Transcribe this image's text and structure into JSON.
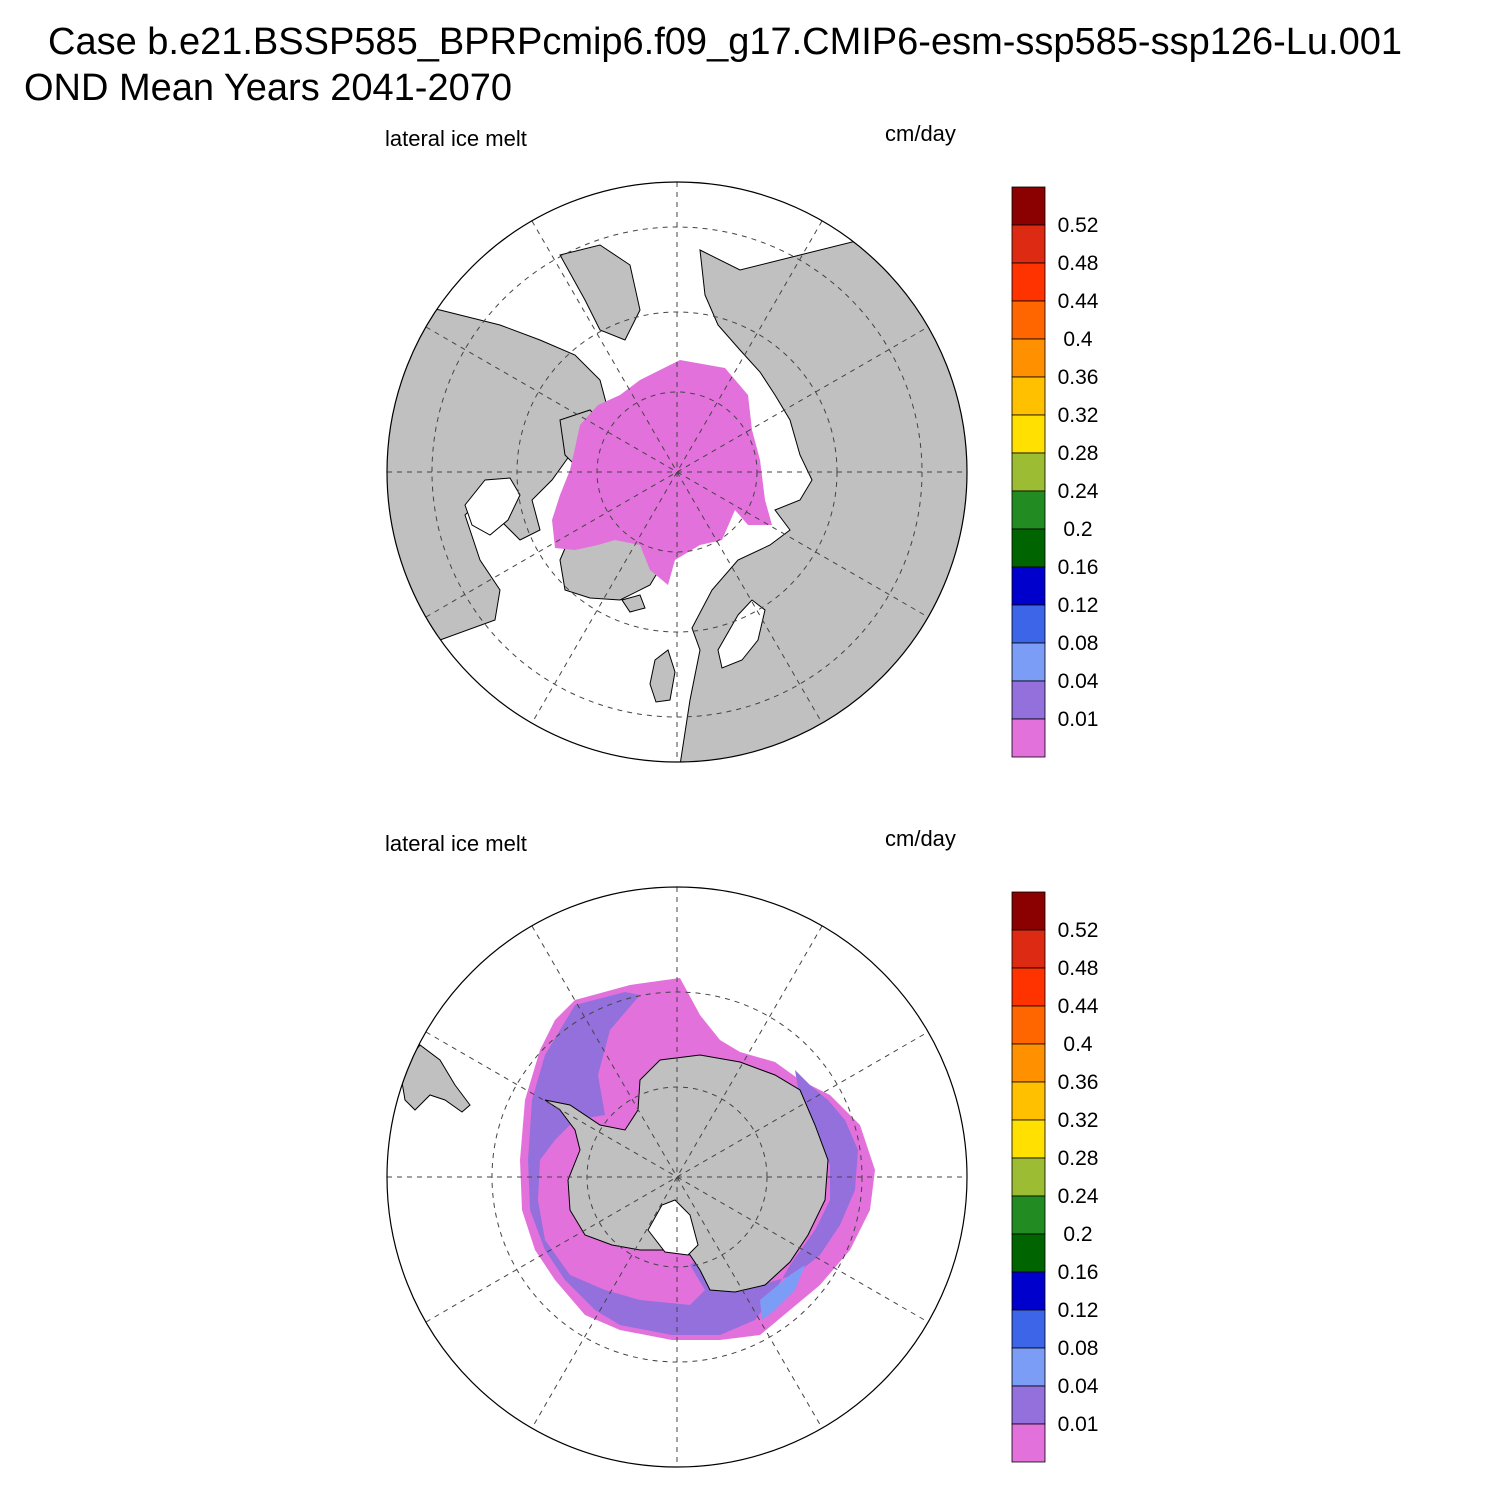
{
  "header": {
    "title_line1": "Case b.e21.BSSP585_BPRPcmip6.f09_g17.CMIP6-esm-ssp585-ssp126-Lu.001",
    "title_line2": "OND Mean   Years 2041-2070"
  },
  "panels": [
    {
      "id": "north",
      "left_label": "lateral ice melt",
      "right_label": "cm/day",
      "hemisphere": "Northern Hemisphere polar stereographic"
    },
    {
      "id": "south",
      "left_label": "lateral ice melt",
      "right_label": "cm/day",
      "hemisphere": "Southern Hemisphere polar stereographic"
    }
  ],
  "colorbar": {
    "levels": [
      "0.52",
      "0.48",
      "0.44",
      "0.4",
      "0.36",
      "0.32",
      "0.28",
      "0.24",
      "0.2",
      "0.16",
      "0.12",
      "0.08",
      "0.04",
      "0.01"
    ],
    "colors": [
      "#8b0000",
      "#dd2a12",
      "#ff3300",
      "#ff6600",
      "#ff9100",
      "#ffc000",
      "#ffe000",
      "#9cbd33",
      "#228b22",
      "#006400",
      "#0000cd",
      "#3d65e8",
      "#7b9df5",
      "#9370db",
      "#e371dc"
    ]
  },
  "colors": {
    "land": "#c0c0c0",
    "ocean": "#ffffff",
    "grid": "#555555"
  }
}
